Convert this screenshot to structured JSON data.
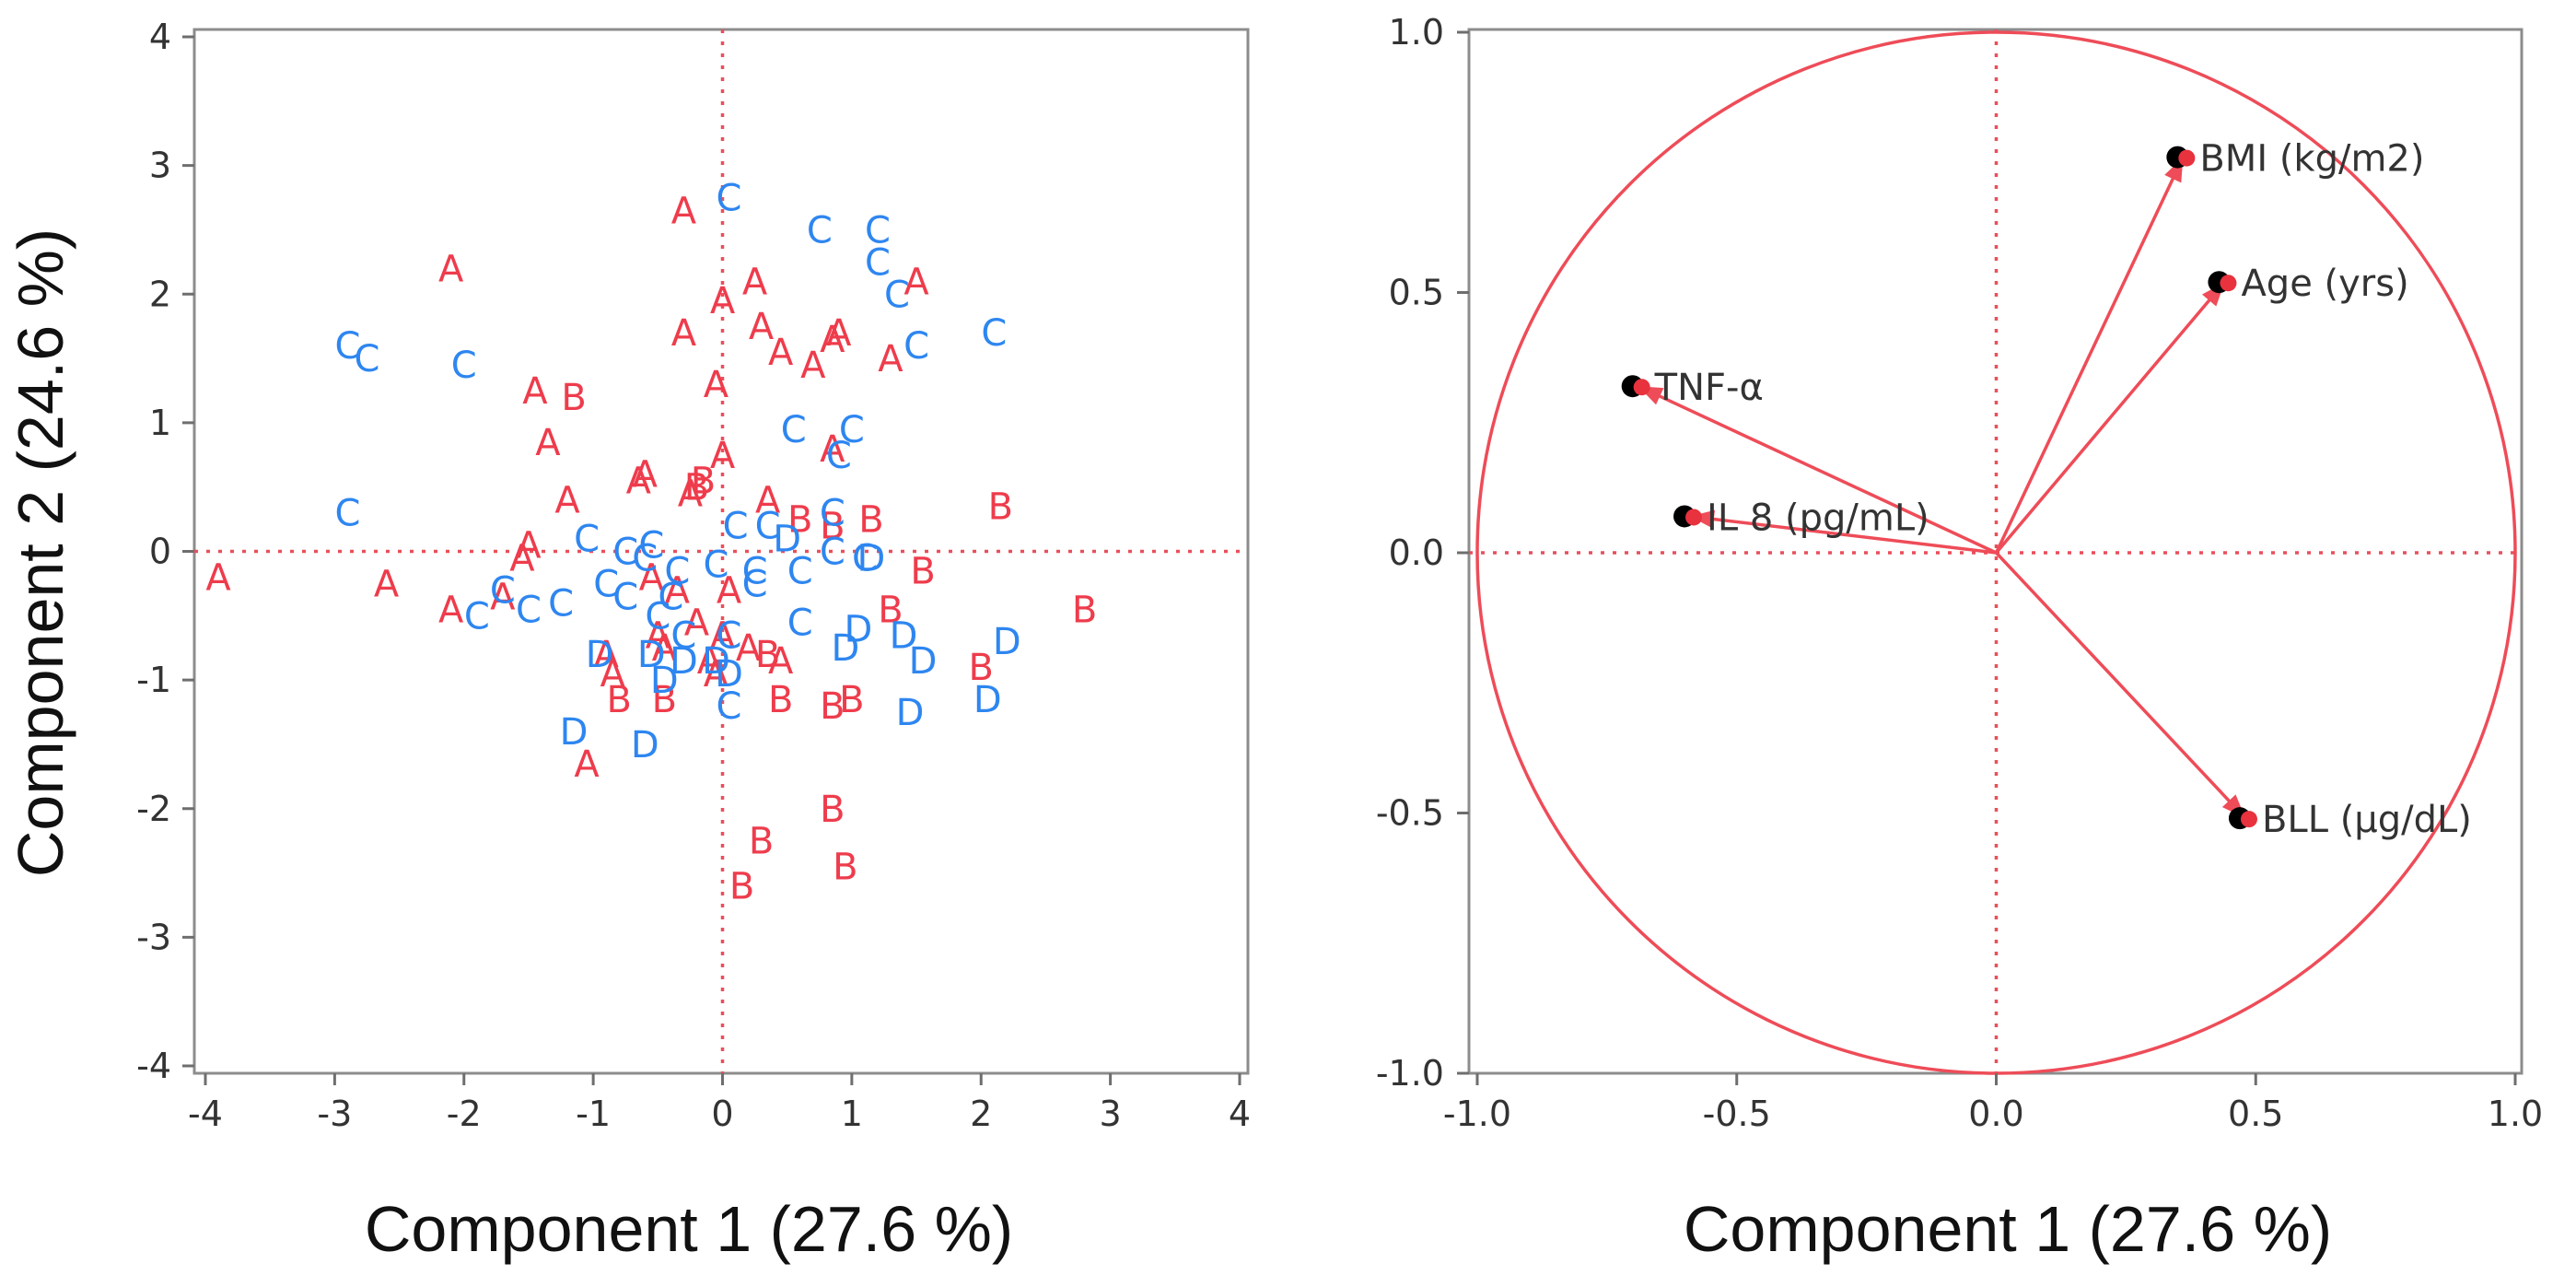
{
  "colors": {
    "A": "#ee3c4c",
    "B": "#ee3c4c",
    "C": "#2e86f0",
    "D": "#2e86f0",
    "loading": "#ee4c58",
    "marker": "#000000"
  },
  "chart_data": [
    {
      "type": "scatter",
      "title": "",
      "xlabel": "Component 1 (27.6 %)",
      "ylabel": "Component 2 (24.6 %)",
      "xlim": [
        -4,
        4
      ],
      "ylim": [
        -4,
        4
      ],
      "xticks": [
        "-4",
        "-3",
        "-2",
        "-1",
        "0",
        "1",
        "2",
        "3",
        "4"
      ],
      "yticks": [
        "-4",
        "-3",
        "-2",
        "-1",
        "0",
        "1",
        "2",
        "3",
        "4"
      ],
      "grid": false,
      "reference_lines": {
        "x": 0,
        "y": 0
      },
      "series": [
        {
          "name": "A",
          "points": [
            [
              -3.9,
              -0.2
            ],
            [
              -2.6,
              -0.25
            ],
            [
              -2.1,
              2.2
            ],
            [
              -2.1,
              -0.45
            ],
            [
              -1.7,
              -0.35
            ],
            [
              -1.55,
              -0.05
            ],
            [
              -1.5,
              0.05
            ],
            [
              -1.45,
              1.25
            ],
            [
              -1.35,
              0.85
            ],
            [
              -1.2,
              0.4
            ],
            [
              -1.05,
              -1.65
            ],
            [
              -0.9,
              -0.8
            ],
            [
              -0.85,
              -0.95
            ],
            [
              -0.65,
              0.55
            ],
            [
              -0.6,
              0.6
            ],
            [
              -0.55,
              -0.2
            ],
            [
              -0.5,
              -0.65
            ],
            [
              -0.45,
              -0.75
            ],
            [
              -0.35,
              -0.3
            ],
            [
              -0.3,
              2.65
            ],
            [
              -0.3,
              1.7
            ],
            [
              -0.25,
              0.45
            ],
            [
              -0.2,
              -0.55
            ],
            [
              -0.1,
              -0.85
            ],
            [
              -0.05,
              -0.95
            ],
            [
              -0.05,
              1.3
            ],
            [
              0.0,
              0.75
            ],
            [
              0.0,
              1.95
            ],
            [
              0.05,
              -0.3
            ],
            [
              0.0,
              -0.65
            ],
            [
              0.2,
              -0.75
            ],
            [
              0.25,
              2.1
            ],
            [
              0.3,
              1.75
            ],
            [
              0.35,
              0.4
            ],
            [
              0.45,
              1.55
            ],
            [
              0.45,
              -0.85
            ],
            [
              0.7,
              1.45
            ],
            [
              0.85,
              0.8
            ],
            [
              0.85,
              1.65
            ],
            [
              0.9,
              1.7
            ],
            [
              1.3,
              1.5
            ],
            [
              1.5,
              2.1
            ]
          ]
        },
        {
          "name": "B",
          "points": [
            [
              -1.15,
              1.2
            ],
            [
              -0.8,
              -1.15
            ],
            [
              -0.45,
              -1.15
            ],
            [
              -0.2,
              0.5
            ],
            [
              -0.15,
              0.55
            ],
            [
              0.15,
              -2.6
            ],
            [
              0.3,
              -2.25
            ],
            [
              0.35,
              -0.8
            ],
            [
              0.45,
              -1.15
            ],
            [
              0.6,
              0.25
            ],
            [
              0.85,
              -1.2
            ],
            [
              0.85,
              -2.0
            ],
            [
              0.85,
              0.2
            ],
            [
              0.95,
              -2.45
            ],
            [
              1.0,
              -1.15
            ],
            [
              1.15,
              0.25
            ],
            [
              1.3,
              -0.45
            ],
            [
              1.55,
              -0.15
            ],
            [
              2.0,
              -0.9
            ],
            [
              2.15,
              0.35
            ],
            [
              2.8,
              -0.45
            ]
          ]
        },
        {
          "name": "C",
          "points": [
            [
              -2.9,
              1.6
            ],
            [
              -2.75,
              1.5
            ],
            [
              -2.9,
              0.3
            ],
            [
              -2.0,
              1.45
            ],
            [
              -1.9,
              -0.5
            ],
            [
              -1.7,
              -0.3
            ],
            [
              -1.5,
              -0.45
            ],
            [
              -1.25,
              -0.4
            ],
            [
              -1.05,
              0.1
            ],
            [
              -0.9,
              -0.25
            ],
            [
              -0.75,
              0.0
            ],
            [
              -0.75,
              -0.35
            ],
            [
              -0.6,
              -0.05
            ],
            [
              -0.55,
              0.05
            ],
            [
              -0.5,
              -0.5
            ],
            [
              -0.4,
              -0.35
            ],
            [
              -0.35,
              -0.15
            ],
            [
              -0.3,
              -0.65
            ],
            [
              -0.05,
              -0.1
            ],
            [
              0.05,
              -0.65
            ],
            [
              0.05,
              -1.2
            ],
            [
              0.05,
              2.75
            ],
            [
              0.1,
              0.2
            ],
            [
              0.25,
              -0.25
            ],
            [
              0.25,
              -0.15
            ],
            [
              0.35,
              0.2
            ],
            [
              0.55,
              0.95
            ],
            [
              0.6,
              -0.55
            ],
            [
              0.6,
              -0.15
            ],
            [
              0.75,
              2.5
            ],
            [
              0.85,
              0.3
            ],
            [
              0.85,
              0.0
            ],
            [
              0.9,
              0.75
            ],
            [
              1.0,
              0.95
            ],
            [
              1.1,
              -0.05
            ],
            [
              1.2,
              2.5
            ],
            [
              1.2,
              2.25
            ],
            [
              1.35,
              2.0
            ],
            [
              1.5,
              1.6
            ],
            [
              2.1,
              1.7
            ]
          ]
        },
        {
          "name": "D",
          "points": [
            [
              -1.15,
              -1.4
            ],
            [
              -0.95,
              -0.8
            ],
            [
              -0.6,
              -1.5
            ],
            [
              -0.55,
              -0.8
            ],
            [
              -0.45,
              -1.0
            ],
            [
              -0.3,
              -0.85
            ],
            [
              -0.05,
              -0.85
            ],
            [
              0.05,
              -0.95
            ],
            [
              0.5,
              0.1
            ],
            [
              0.95,
              -0.75
            ],
            [
              1.05,
              -0.6
            ],
            [
              1.15,
              -0.05
            ],
            [
              1.45,
              -1.25
            ],
            [
              1.4,
              -0.65
            ],
            [
              1.55,
              -0.85
            ],
            [
              2.05,
              -1.15
            ],
            [
              2.2,
              -0.7
            ]
          ]
        }
      ]
    },
    {
      "type": "line",
      "title": "",
      "xlabel": "Component 1 (27.6 %)",
      "ylabel": "",
      "xlim": [
        -1.0,
        1.0
      ],
      "ylim": [
        -1.0,
        1.0
      ],
      "xticks": [
        "-1.0",
        "-0.5",
        "0.0",
        "0.5",
        "1.0"
      ],
      "yticks": [
        "-1.0",
        "-0.5",
        "0.0",
        "0.5",
        "1.0"
      ],
      "grid": false,
      "unit_circle": true,
      "reference_lines": {
        "x": 0,
        "y": 0
      },
      "series": [
        {
          "name": "BMI (kg/m2)",
          "x": 0.36,
          "y": 0.76
        },
        {
          "name": "Age (yrs)",
          "x": 0.44,
          "y": 0.52
        },
        {
          "name": "TNF-α",
          "x": -0.69,
          "y": 0.32
        },
        {
          "name": "IL 8 (pg/mL)",
          "x": -0.59,
          "y": 0.07
        },
        {
          "name": "BLL (µg/dL)",
          "x": 0.48,
          "y": -0.51
        }
      ]
    }
  ]
}
